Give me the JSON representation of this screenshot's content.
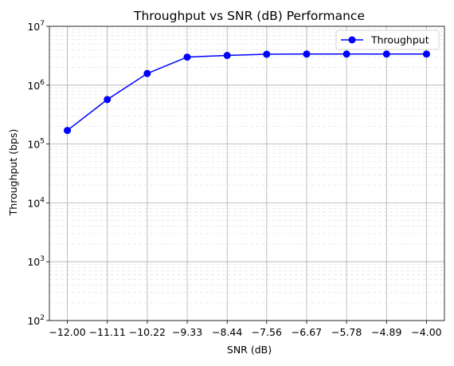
{
  "chart_data": {
    "type": "line",
    "title": "Throughput vs SNR (dB) Performance",
    "xlabel": "SNR (dB)",
    "ylabel": "Throughput (bps)",
    "x": [
      -12.0,
      -11.11,
      -10.22,
      -9.33,
      -8.44,
      -7.56,
      -6.67,
      -5.78,
      -4.89,
      -4.0
    ],
    "x_tick_labels": [
      "−12.00",
      "−11.11",
      "−10.22",
      "−9.33",
      "−8.44",
      "−7.56",
      "−6.67",
      "−5.78",
      "−4.89",
      "−4.00"
    ],
    "y_scale": "log",
    "ylim": [
      100,
      10000000
    ],
    "y_ticks": [
      {
        "base": "10",
        "exp": "2"
      },
      {
        "base": "10",
        "exp": "3"
      },
      {
        "base": "10",
        "exp": "4"
      },
      {
        "base": "10",
        "exp": "5"
      },
      {
        "base": "10",
        "exp": "6"
      },
      {
        "base": "10",
        "exp": "7"
      }
    ],
    "series": [
      {
        "name": "Throughput",
        "color": "#0000ff",
        "marker": "circle",
        "values": [
          170000,
          570000,
          1580000,
          3000000,
          3200000,
          3350000,
          3380000,
          3380000,
          3380000,
          3380000
        ]
      }
    ],
    "grid": "major and minor",
    "legend_position": "top-right"
  }
}
